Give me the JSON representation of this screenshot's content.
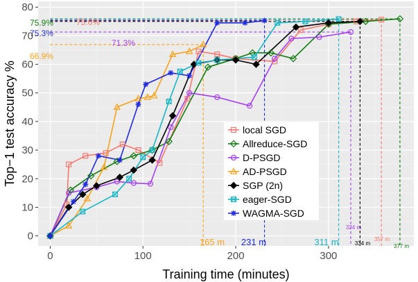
{
  "chart_data": {
    "type": "line",
    "xlabel": "Training time (minutes)",
    "ylabel": "Top−1 test accuracy %",
    "xlim": [
      -13,
      392
    ],
    "ylim": [
      -3.5,
      82
    ],
    "x_ticks": [
      0,
      100,
      200,
      300
    ],
    "y_ticks": [
      0,
      10,
      20,
      30,
      40,
      50,
      60,
      70,
      80
    ],
    "grid": true,
    "background": "#ebebeb",
    "legend_position": "bottom-center",
    "series": [
      {
        "name": "local SGD",
        "color": "#f8766d",
        "marker": "square-open",
        "points": [
          [
            0,
            0
          ],
          [
            18,
            11
          ],
          [
            20,
            25
          ],
          [
            38,
            28
          ],
          [
            60,
            29
          ],
          [
            78,
            32
          ],
          [
            95,
            30
          ],
          [
            118,
            25.5
          ],
          [
            148,
            48
          ],
          [
            160,
            64.5
          ],
          [
            180,
            63.5
          ],
          [
            200,
            62
          ],
          [
            242,
            61
          ],
          [
            270,
            72
          ],
          [
            300,
            74
          ],
          [
            330,
            75
          ],
          [
            357,
            75.6
          ]
        ]
      },
      {
        "name": "Allreduce-SGD",
        "color": "#117a11",
        "marker": "diamond-open",
        "points": [
          [
            0,
            0
          ],
          [
            22,
            16
          ],
          [
            44,
            21
          ],
          [
            72,
            26
          ],
          [
            90,
            28
          ],
          [
            110,
            30
          ],
          [
            128,
            33
          ],
          [
            170,
            59
          ],
          [
            200,
            62
          ],
          [
            218,
            64
          ],
          [
            238,
            64
          ],
          [
            262,
            62
          ],
          [
            300,
            74
          ],
          [
            340,
            75
          ],
          [
            377,
            75.9
          ]
        ]
      },
      {
        "name": "D-PSGD",
        "color": "#a33ff0",
        "marker": "circle-open",
        "points": [
          [
            0,
            0
          ],
          [
            20,
            15
          ],
          [
            50,
            17
          ],
          [
            72,
            19
          ],
          [
            90,
            18.5
          ],
          [
            108,
            18.2
          ],
          [
            130,
            38
          ],
          [
            150,
            50
          ],
          [
            180,
            48.5
          ],
          [
            215,
            45.5
          ],
          [
            242,
            62
          ],
          [
            260,
            69
          ],
          [
            290,
            69.5
          ],
          [
            324,
            71.3
          ]
        ]
      },
      {
        "name": "AD-PSGD",
        "color": "#f7a21c",
        "marker": "triangle-open",
        "points": [
          [
            0,
            0
          ],
          [
            20,
            3.5
          ],
          [
            40,
            13
          ],
          [
            58,
            24
          ],
          [
            72,
            45
          ],
          [
            95,
            48
          ],
          [
            105,
            48.5
          ],
          [
            112,
            49
          ],
          [
            132,
            63.5
          ],
          [
            150,
            64.5
          ],
          [
            165,
            66.9
          ]
        ]
      },
      {
        "name": "SGP (2n)",
        "color": "#000000",
        "marker": "diamond-filled",
        "points": [
          [
            0,
            0
          ],
          [
            20,
            10
          ],
          [
            35,
            14.5
          ],
          [
            50,
            17.5
          ],
          [
            75,
            20.5
          ],
          [
            90,
            23
          ],
          [
            110,
            26.5
          ],
          [
            132,
            42
          ],
          [
            155,
            60
          ],
          [
            180,
            61.5
          ],
          [
            200,
            61.5
          ],
          [
            222,
            60
          ],
          [
            265,
            73
          ],
          [
            300,
            74.5
          ],
          [
            334,
            75
          ]
        ]
      },
      {
        "name": "eager-SGD",
        "color": "#17b5c4",
        "marker": "square-x",
        "points": [
          [
            0,
            0
          ],
          [
            35,
            8.5
          ],
          [
            70,
            14.5
          ],
          [
            85,
            20
          ],
          [
            100,
            27.5
          ],
          [
            110,
            30
          ],
          [
            128,
            47
          ],
          [
            140,
            57.5
          ],
          [
            160,
            60.5
          ],
          [
            180,
            61.5
          ],
          [
            220,
            62.5
          ],
          [
            245,
            74.5
          ],
          [
            275,
            75
          ],
          [
            311,
            75.8
          ]
        ]
      },
      {
        "name": "WAGMA-SGD",
        "color": "#1f2adb",
        "marker": "asterisk",
        "points": [
          [
            0,
            0
          ],
          [
            25,
            12
          ],
          [
            38,
            18
          ],
          [
            52,
            28
          ],
          [
            75,
            26.5
          ],
          [
            95,
            46
          ],
          [
            103,
            53
          ],
          [
            130,
            57
          ],
          [
            150,
            56
          ],
          [
            180,
            74.5
          ],
          [
            210,
            74.5
          ],
          [
            231,
            75.3
          ]
        ]
      }
    ],
    "annotations": [
      {
        "text": "75.9%",
        "color": "#117a11"
      },
      {
        "text": "75.6%",
        "color": "#f8766d"
      },
      {
        "text": "75.3%",
        "color": "#1f2adb"
      },
      {
        "text": "71.3%",
        "color": "#a33ff0"
      },
      {
        "text": "66.9%",
        "color": "#f7a21c"
      },
      {
        "text": "165 m",
        "color": "#f7a21c"
      },
      {
        "text": "231 m",
        "color": "#1f2adb"
      },
      {
        "text": "311 m",
        "color": "#17b5c4"
      },
      {
        "text": "324 m",
        "color": "#a33ff0"
      },
      {
        "text": "334 m",
        "color": "#000000"
      },
      {
        "text": "357 m",
        "color": "#f8766d"
      },
      {
        "text": "377 m",
        "color": "#117a11"
      }
    ]
  }
}
